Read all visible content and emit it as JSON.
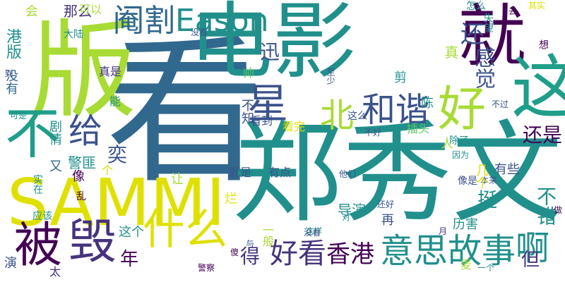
{
  "title": "",
  "palette": {
    "yellow": "#e0e000",
    "lime": "#a8db34",
    "green": "#58c667",
    "teal": "#21908c",
    "teal2": "#1f9e89",
    "blue": "#31688e",
    "indigo": "#3b528b",
    "purple": "#46337e",
    "dark": "#440154"
  },
  "words": [
    {
      "text": "看",
      "color": "blue"
    },
    {
      "text": "电影",
      "color": "teal"
    },
    {
      "text": "版",
      "color": "lime"
    },
    {
      "text": "就",
      "color": "dark"
    },
    {
      "text": "郑秀文",
      "color": "teal"
    },
    {
      "text": "不",
      "color": "teal2"
    },
    {
      "text": "SAMMI",
      "color": "yellow"
    },
    {
      "text": "这",
      "color": "teal2"
    },
    {
      "text": "好",
      "color": "lime"
    },
    {
      "text": "被",
      "color": "dark"
    },
    {
      "text": "毁",
      "color": "purple"
    },
    {
      "text": "什么",
      "color": "yellow"
    },
    {
      "text": "星",
      "color": "indigo"
    },
    {
      "text": "和谐",
      "color": "indigo"
    },
    {
      "text": "给",
      "color": "indigo"
    },
    {
      "text": "阉割",
      "color": "blue"
    },
    {
      "text": "Eason",
      "color": "teal"
    },
    {
      "text": "意思",
      "color": "teal"
    },
    {
      "text": "故事",
      "color": "teal"
    },
    {
      "text": "啊",
      "color": "teal"
    },
    {
      "text": "好看",
      "color": "purple"
    },
    {
      "text": "香港",
      "color": "dark"
    },
    {
      "text": "北",
      "color": "lime"
    },
    {
      "text": "还",
      "color": "indigo"
    },
    {
      "text": "感觉",
      "color": "indigo"
    },
    {
      "text": "迅",
      "color": "indigo"
    },
    {
      "text": "奕",
      "color": "indigo"
    },
    {
      "text": "挺",
      "color": "teal"
    },
    {
      "text": "不错",
      "color": "teal"
    },
    {
      "text": "还是",
      "color": "dark"
    },
    {
      "text": "得",
      "color": "purple"
    },
    {
      "text": "年",
      "color": "dark"
    },
    {
      "text": "但",
      "color": "purple"
    },
    {
      "text": "港版",
      "color": "teal"
    },
    {
      "text": "没有",
      "color": "blue"
    },
    {
      "text": "那么",
      "color": "purple"
    },
    {
      "text": "可以",
      "color": "lime"
    },
    {
      "text": "会",
      "color": "lime"
    },
    {
      "text": "大陆",
      "color": "teal"
    },
    {
      "text": "真是",
      "color": "purple"
    },
    {
      "text": "到",
      "color": "indigo"
    },
    {
      "text": "可是",
      "color": "teal"
    },
    {
      "text": "剧情",
      "color": "teal"
    },
    {
      "text": "能",
      "color": "teal"
    },
    {
      "text": "又",
      "color": "blue"
    },
    {
      "text": "警匪",
      "color": "teal"
    },
    {
      "text": "像",
      "color": "dark"
    },
    {
      "text": "个",
      "color": "yellow"
    },
    {
      "text": "让",
      "color": "lime"
    },
    {
      "text": "实在",
      "color": "teal"
    },
    {
      "text": "应该",
      "color": "teal"
    },
    {
      "text": "乱",
      "color": "dark"
    },
    {
      "text": "这个",
      "color": "teal"
    },
    {
      "text": "太",
      "color": "purple"
    },
    {
      "text": "演",
      "color": "indigo"
    },
    {
      "text": "烂",
      "color": "yellow"
    },
    {
      "text": "导演",
      "color": "teal"
    },
    {
      "text": "再",
      "color": "indigo"
    },
    {
      "text": "一般",
      "color": "lime"
    },
    {
      "text": "有点",
      "color": "indigo"
    },
    {
      "text": "就是",
      "color": "indigo"
    },
    {
      "text": "他们",
      "color": "indigo"
    },
    {
      "text": "像是",
      "color": "indigo"
    },
    {
      "text": "本来",
      "color": "indigo"
    },
    {
      "text": "历害",
      "color": "teal"
    },
    {
      "text": "做",
      "color": "dark"
    },
    {
      "text": "警察",
      "color": "dark"
    },
    {
      "text": "傻",
      "color": "dark"
    },
    {
      "text": "与",
      "color": "indigo"
    },
    {
      "text": "这样",
      "color": "teal"
    },
    {
      "text": "对",
      "color": "teal"
    },
    {
      "text": "还好",
      "color": "indigo"
    },
    {
      "text": "月",
      "color": "purple"
    },
    {
      "text": "麦",
      "color": "lime"
    },
    {
      "text": "一个",
      "color": "teal"
    },
    {
      "text": "几个",
      "color": "yellow"
    },
    {
      "text": "有些",
      "color": "indigo"
    },
    {
      "text": "除了",
      "color": "teal"
    },
    {
      "text": "因为",
      "color": "teal"
    },
    {
      "text": "不知",
      "color": "indigo"
    },
    {
      "text": "看到",
      "color": "indigo"
    },
    {
      "text": "看完",
      "color": "yellow"
    },
    {
      "text": "这么",
      "color": "indigo"
    },
    {
      "text": "插头",
      "color": "green"
    },
    {
      "text": "不好",
      "color": "indigo"
    },
    {
      "text": "不过",
      "color": "indigo"
    },
    {
      "text": "没看",
      "color": "indigo"
    },
    {
      "text": "帅",
      "color": "green"
    },
    {
      "text": "至少",
      "color": "indigo"
    },
    {
      "text": "陈",
      "color": "teal"
    },
    {
      "text": "其实",
      "color": "yellow"
    },
    {
      "text": "去",
      "color": "dark"
    },
    {
      "text": "怎么",
      "color": "teal"
    },
    {
      "text": "想",
      "color": "dark"
    },
    {
      "text": "失望",
      "color": "teal"
    },
    {
      "text": "真",
      "color": "lime"
    },
    {
      "text": "剪",
      "color": "teal"
    },
    {
      "text": "人",
      "color": "lime"
    },
    {
      "text": "没看",
      "color": "indigo"
    }
  ]
}
